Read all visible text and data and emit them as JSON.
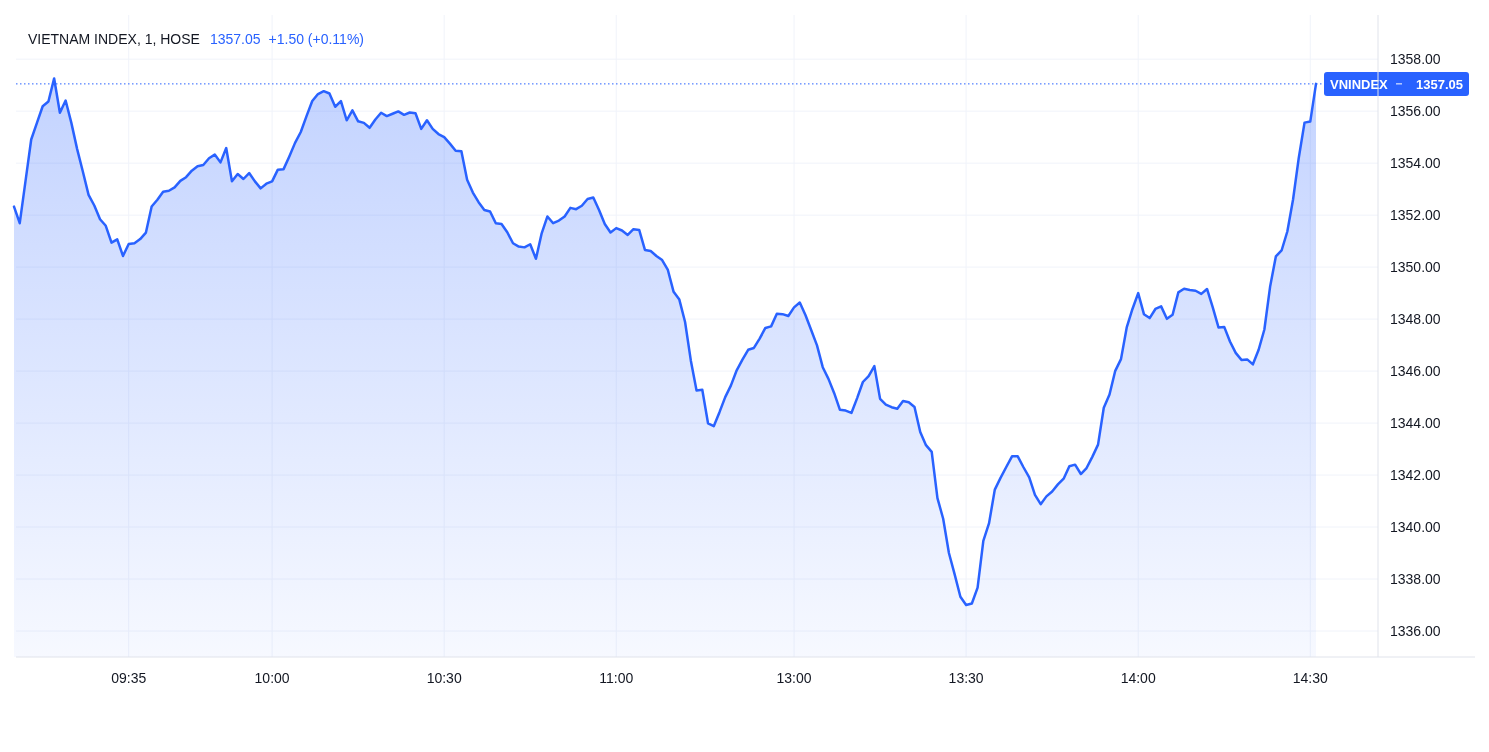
{
  "chart_data": {
    "type": "area",
    "title": "VIETNAM INDEX, 1, HOSE",
    "annotations": [
      "1357.05",
      "+1.50 (+0.11%)"
    ],
    "categories": [
      null,
      null,
      null,
      null,
      null,
      null,
      null,
      null,
      null,
      null,
      null,
      null,
      null,
      null,
      null,
      null,
      null,
      null,
      null,
      null,
      "09:35",
      null,
      null,
      null,
      null,
      null,
      null,
      null,
      null,
      null,
      null,
      null,
      null,
      null,
      null,
      null,
      null,
      null,
      null,
      null,
      null,
      null,
      null,
      null,
      null,
      "10:00",
      null,
      null,
      null,
      null,
      null,
      null,
      null,
      null,
      null,
      null,
      null,
      null,
      null,
      null,
      null,
      null,
      null,
      null,
      null,
      null,
      null,
      null,
      null,
      null,
      null,
      null,
      null,
      null,
      null,
      "10:30",
      null,
      null,
      null,
      null,
      null,
      null,
      null,
      null,
      null,
      null,
      null,
      null,
      null,
      null,
      null,
      null,
      null,
      null,
      null,
      null,
      null,
      null,
      null,
      null,
      null,
      null,
      null,
      null,
      null,
      "11:00",
      null,
      null,
      null,
      null,
      null,
      null,
      null,
      null,
      null,
      null,
      null,
      null,
      null,
      null,
      null,
      null,
      null,
      null,
      null,
      null,
      null,
      null,
      null,
      null,
      null,
      null,
      null,
      null,
      null,
      null,
      "13:00",
      null,
      null,
      null,
      null,
      null,
      null,
      null,
      null,
      null,
      null,
      null,
      null,
      null,
      null,
      null,
      null,
      null,
      null,
      null,
      null,
      null,
      null,
      null,
      null,
      null,
      null,
      null,
      null,
      null,
      "13:30",
      null,
      null,
      null,
      null,
      null,
      null,
      null,
      null,
      null,
      null,
      null,
      null,
      null,
      null,
      null,
      null,
      null,
      null,
      null,
      null,
      null,
      null,
      null,
      null,
      null,
      null,
      null,
      null,
      null,
      "14:00",
      null,
      null,
      null,
      null,
      null,
      null,
      null,
      null,
      null,
      null,
      null,
      null,
      null,
      null,
      null,
      null,
      null,
      null,
      null,
      null,
      null,
      null,
      null,
      null,
      null,
      null,
      null,
      null,
      null,
      "14:30",
      null
    ],
    "series": [
      {
        "color": "#2962ff",
        "values": [
          1352.33,
          1351.69,
          1353.3,
          1354.91,
          1355.55,
          1356.19,
          1356.37,
          1357.26,
          1355.94,
          1356.41,
          1355.55,
          1354.55,
          1353.68,
          1352.78,
          1352.37,
          1351.84,
          1351.59,
          1350.94,
          1351.07,
          1350.43,
          1350.89,
          1350.92,
          1351.08,
          1351.33,
          1352.33,
          1352.59,
          1352.9,
          1352.94,
          1353.07,
          1353.32,
          1353.46,
          1353.71,
          1353.88,
          1353.93,
          1354.19,
          1354.33,
          1354.03,
          1354.58,
          1353.3,
          1353.58,
          1353.39,
          1353.62,
          1353.3,
          1353.03,
          1353.21,
          1353.3,
          1353.75,
          1353.77,
          1354.26,
          1354.78,
          1355.2,
          1355.81,
          1356.39,
          1356.66,
          1356.77,
          1356.68,
          1356.17,
          1356.39,
          1355.65,
          1356.03,
          1355.61,
          1355.55,
          1355.36,
          1355.68,
          1355.94,
          1355.81,
          1355.9,
          1355.99,
          1355.86,
          1355.95,
          1355.92,
          1355.32,
          1355.65,
          1355.32,
          1355.12,
          1355.0,
          1354.75,
          1354.48,
          1354.46,
          1353.36,
          1352.87,
          1352.5,
          1352.2,
          1352.14,
          1351.69,
          1351.66,
          1351.34,
          1350.92,
          1350.79,
          1350.76,
          1350.88,
          1350.32,
          1351.3,
          1351.95,
          1351.69,
          1351.79,
          1351.95,
          1352.28,
          1352.23,
          1352.36,
          1352.62,
          1352.68,
          1352.2,
          1351.66,
          1351.33,
          1351.5,
          1351.41,
          1351.24,
          1351.46,
          1351.43,
          1350.66,
          1350.62,
          1350.43,
          1350.27,
          1349.89,
          1349.05,
          1348.75,
          1347.89,
          1346.41,
          1345.25,
          1345.28,
          1343.99,
          1343.88,
          1344.42,
          1345.0,
          1345.45,
          1346.03,
          1346.44,
          1346.82,
          1346.89,
          1347.25,
          1347.66,
          1347.72,
          1348.21,
          1348.19,
          1348.12,
          1348.45,
          1348.64,
          1348.15,
          1347.57,
          1346.99,
          1346.15,
          1345.7,
          1345.15,
          1344.51,
          1344.48,
          1344.39,
          1344.96,
          1345.58,
          1345.81,
          1346.19,
          1344.93,
          1344.71,
          1344.61,
          1344.55,
          1344.85,
          1344.8,
          1344.62,
          1343.66,
          1343.15,
          1342.89,
          1341.11,
          1340.32,
          1339.0,
          1338.18,
          1337.32,
          1337.0,
          1337.06,
          1337.67,
          1339.47,
          1340.15,
          1341.44,
          1341.89,
          1342.31,
          1342.72,
          1342.72,
          1342.3,
          1341.91,
          1341.24,
          1340.88,
          1341.18,
          1341.37,
          1341.64,
          1341.86,
          1342.34,
          1342.4,
          1342.04,
          1342.27,
          1342.7,
          1343.17,
          1344.59,
          1345.1,
          1346.01,
          1346.46,
          1347.68,
          1348.39,
          1349.0,
          1348.19,
          1348.04,
          1348.39,
          1348.49,
          1348.01,
          1348.17,
          1349.03,
          1349.17,
          1349.12,
          1349.09,
          1348.97,
          1349.16,
          1348.45,
          1347.68,
          1347.7,
          1347.14,
          1346.7,
          1346.43,
          1346.45,
          1346.26,
          1346.82,
          1347.6,
          1349.25,
          1350.41,
          1350.64,
          1351.37,
          1352.6,
          1354.21,
          1355.56,
          1355.6,
          1357.05
        ]
      }
    ],
    "ylim": [
      1335,
      1359.7
    ],
    "yticks": [
      {
        "value": 1336,
        "label": "1336.00"
      },
      {
        "value": 1338,
        "label": "1338.00"
      },
      {
        "value": 1340,
        "label": "1340.00"
      },
      {
        "value": 1342,
        "label": "1342.00"
      },
      {
        "value": 1344,
        "label": "1344.00"
      },
      {
        "value": 1346,
        "label": "1346.00"
      },
      {
        "value": 1348,
        "label": "1348.00"
      },
      {
        "value": 1350,
        "label": "1350.00"
      },
      {
        "value": 1352,
        "label": "1352.00"
      },
      {
        "value": 1354,
        "label": "1354.00"
      },
      {
        "value": 1356,
        "label": "1356.00"
      },
      {
        "value": 1358,
        "label": "1358.00"
      }
    ],
    "grid": true,
    "ref_lines": [
      {
        "axis": "y",
        "value": 1357.05,
        "label": "VNINDEX",
        "color": "#2962ff",
        "line_style": "dotted"
      }
    ]
  }
}
